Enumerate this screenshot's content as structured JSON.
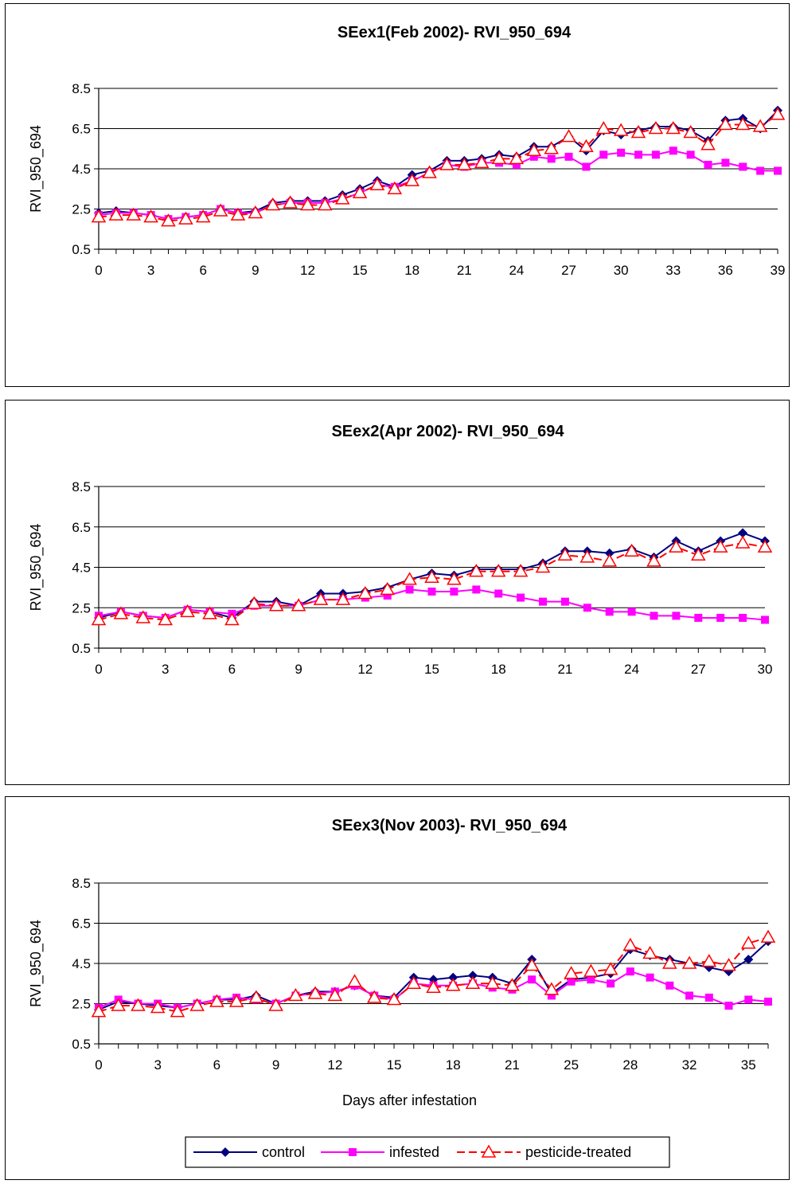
{
  "chart_data": [
    {
      "type": "line",
      "title": "SEex1(Feb 2002)- RVI_950_694",
      "xlabel": "",
      "ylabel": "RVI_950_694",
      "ylim": [
        0.5,
        8.5
      ],
      "yticks": [
        "0.5",
        "2.5",
        "4.5",
        "6.5",
        "8.5"
      ],
      "categories": [
        "0",
        "1",
        "2",
        "3",
        "4",
        "5",
        "6",
        "7",
        "8",
        "9",
        "10",
        "11",
        "12",
        "13",
        "14",
        "15",
        "16",
        "17",
        "18",
        "19",
        "20",
        "21",
        "22",
        "23",
        "24",
        "25",
        "26",
        "27",
        "28",
        "29",
        "30",
        "31",
        "32",
        "33",
        "34",
        "35",
        "36",
        "37",
        "38",
        "39"
      ],
      "xtick_labels": [
        "0",
        "",
        "",
        "3",
        "",
        "",
        "6",
        "",
        "",
        "9",
        "",
        "",
        "12",
        "",
        "",
        "15",
        "",
        "",
        "18",
        "",
        "",
        "21",
        "",
        "",
        "24",
        "",
        "",
        "27",
        "",
        "",
        "30",
        "",
        "",
        "33",
        "",
        "",
        "36",
        "",
        "",
        "39"
      ],
      "grid": "horizontal",
      "series": [
        {
          "name": "control",
          "color": "#000080",
          "marker": "diamond",
          "values": [
            2.3,
            2.4,
            2.3,
            2.2,
            2.0,
            2.1,
            2.2,
            2.5,
            2.3,
            2.4,
            2.8,
            2.9,
            2.9,
            2.9,
            3.2,
            3.5,
            3.9,
            3.6,
            4.2,
            4.4,
            4.9,
            4.9,
            5.0,
            5.2,
            5.1,
            5.6,
            5.6,
            6.1,
            5.4,
            6.4,
            6.2,
            6.4,
            6.6,
            6.6,
            6.4,
            5.9,
            6.9,
            7.0,
            6.5,
            7.4
          ]
        },
        {
          "name": "infested",
          "color": "#FF00FF",
          "marker": "square",
          "values": [
            2.2,
            2.3,
            2.3,
            2.2,
            2.0,
            2.1,
            2.2,
            2.5,
            2.3,
            2.3,
            2.7,
            2.8,
            2.8,
            2.8,
            3.0,
            3.3,
            3.7,
            3.6,
            3.9,
            4.3,
            4.7,
            4.6,
            4.8,
            4.8,
            4.7,
            5.1,
            5.0,
            5.1,
            4.6,
            5.2,
            5.3,
            5.2,
            5.2,
            5.4,
            5.2,
            4.7,
            4.8,
            4.6,
            4.4,
            4.4
          ]
        },
        {
          "name": "pesticide-treated",
          "color": "#FF0000",
          "marker": "triangle",
          "dashed": true,
          "values": [
            2.1,
            2.2,
            2.2,
            2.1,
            1.9,
            2.0,
            2.1,
            2.4,
            2.2,
            2.3,
            2.7,
            2.8,
            2.7,
            2.7,
            3.0,
            3.3,
            3.7,
            3.5,
            3.9,
            4.3,
            4.7,
            4.7,
            4.8,
            5.0,
            5.0,
            5.4,
            5.5,
            6.1,
            5.6,
            6.5,
            6.4,
            6.3,
            6.5,
            6.5,
            6.3,
            5.7,
            6.7,
            6.7,
            6.6,
            7.2
          ]
        }
      ]
    },
    {
      "type": "line",
      "title": "SEex2(Apr 2002)- RVI_950_694",
      "xlabel": "",
      "ylabel": "RVI_950_694",
      "ylim": [
        0.5,
        8.5
      ],
      "yticks": [
        "0.5",
        "2.5",
        "4.5",
        "6.5",
        "8.5"
      ],
      "categories": [
        "0",
        "1",
        "2",
        "3",
        "4",
        "5",
        "6",
        "7",
        "8",
        "9",
        "10",
        "11",
        "12",
        "13",
        "14",
        "15",
        "16",
        "17",
        "18",
        "19",
        "20",
        "21",
        "22",
        "23",
        "24",
        "25",
        "26",
        "27",
        "28",
        "29",
        "30"
      ],
      "xtick_labels": [
        "0",
        "",
        "",
        "3",
        "",
        "",
        "6",
        "",
        "",
        "9",
        "",
        "",
        "12",
        "",
        "",
        "15",
        "",
        "",
        "18",
        "",
        "",
        "21",
        "",
        "",
        "24",
        "",
        "",
        "27",
        "",
        "",
        "30"
      ],
      "grid": "horizontal",
      "series": [
        {
          "name": "control",
          "color": "#000080",
          "marker": "diamond",
          "values": [
            2.0,
            2.3,
            2.1,
            2.0,
            2.4,
            2.3,
            2.0,
            2.8,
            2.8,
            2.6,
            3.2,
            3.2,
            3.3,
            3.5,
            3.9,
            4.2,
            4.1,
            4.4,
            4.4,
            4.4,
            4.7,
            5.3,
            5.3,
            5.2,
            5.4,
            5.0,
            5.8,
            5.3,
            5.8,
            6.2,
            5.8
          ]
        },
        {
          "name": "infested",
          "color": "#FF00FF",
          "marker": "square",
          "values": [
            2.1,
            2.3,
            2.1,
            2.0,
            2.4,
            2.3,
            2.2,
            2.6,
            2.6,
            2.6,
            2.9,
            2.9,
            3.0,
            3.1,
            3.4,
            3.3,
            3.3,
            3.4,
            3.2,
            3.0,
            2.8,
            2.8,
            2.5,
            2.3,
            2.3,
            2.1,
            2.1,
            2.0,
            2.0,
            2.0,
            1.9
          ]
        },
        {
          "name": "pesticide-treated",
          "color": "#FF0000",
          "marker": "triangle",
          "dashed": true,
          "values": [
            1.9,
            2.2,
            2.0,
            1.9,
            2.3,
            2.2,
            1.9,
            2.7,
            2.6,
            2.6,
            2.9,
            2.9,
            3.2,
            3.4,
            3.9,
            4.0,
            3.9,
            4.3,
            4.3,
            4.3,
            4.5,
            5.1,
            5.0,
            4.8,
            5.3,
            4.8,
            5.5,
            5.1,
            5.5,
            5.7,
            5.5
          ]
        }
      ]
    },
    {
      "type": "line",
      "title": "SEex3(Nov 2003)- RVI_950_694",
      "xlabel": "Days after infestation",
      "ylabel": "RVI_950_694",
      "ylim": [
        0.5,
        8.5
      ],
      "yticks": [
        "0.5",
        "2.5",
        "4.5",
        "6.5",
        "8.5"
      ],
      "categories": [
        "0",
        "1",
        "2",
        "3",
        "4",
        "5",
        "6",
        "7",
        "8",
        "9",
        "10",
        "11",
        "12",
        "13",
        "14",
        "15",
        "16",
        "17",
        "18",
        "19",
        "20",
        "21",
        "22",
        "24",
        "25",
        "26",
        "27",
        "28",
        "29",
        "30",
        "32",
        "33",
        "34",
        "35",
        "36"
      ],
      "xtick_labels": [
        "0",
        "",
        "",
        "3",
        "",
        "",
        "6",
        "",
        "",
        "9",
        "",
        "",
        "12",
        "",
        "",
        "15",
        "",
        "",
        "18",
        "",
        "",
        "21",
        "",
        "",
        "25",
        "",
        "",
        "28",
        "",
        "",
        "32",
        "",
        "",
        "35",
        ""
      ],
      "grid": "horizontal",
      "series": [
        {
          "name": "control",
          "color": "#000080",
          "marker": "diamond",
          "values": [
            2.2,
            2.6,
            2.5,
            2.4,
            2.3,
            2.5,
            2.7,
            2.7,
            2.9,
            2.5,
            2.9,
            3.1,
            3.1,
            3.4,
            2.9,
            2.8,
            3.8,
            3.7,
            3.8,
            3.9,
            3.8,
            3.5,
            4.7,
            3.0,
            3.7,
            3.8,
            4.0,
            5.2,
            4.9,
            4.7,
            4.5,
            4.3,
            4.1,
            4.7,
            5.6
          ]
        },
        {
          "name": "infested",
          "color": "#FF00FF",
          "marker": "square",
          "values": [
            2.3,
            2.7,
            2.5,
            2.5,
            2.3,
            2.5,
            2.7,
            2.8,
            2.7,
            2.5,
            2.9,
            3.0,
            3.1,
            3.4,
            2.9,
            2.7,
            3.5,
            3.4,
            3.4,
            3.5,
            3.3,
            3.2,
            3.7,
            2.9,
            3.6,
            3.7,
            3.5,
            4.1,
            3.8,
            3.4,
            2.9,
            2.8,
            2.4,
            2.7,
            2.6
          ]
        },
        {
          "name": "pesticide-treated",
          "color": "#FF0000",
          "marker": "triangle",
          "dashed": true,
          "values": [
            2.1,
            2.4,
            2.4,
            2.3,
            2.1,
            2.4,
            2.6,
            2.6,
            2.8,
            2.4,
            2.9,
            3.0,
            2.9,
            3.6,
            2.8,
            2.7,
            3.5,
            3.3,
            3.4,
            3.5,
            3.5,
            3.4,
            4.4,
            3.2,
            4.0,
            4.1,
            4.2,
            5.4,
            5.0,
            4.5,
            4.5,
            4.6,
            4.4,
            5.5,
            5.8
          ]
        }
      ]
    }
  ],
  "legend": {
    "items": [
      {
        "label": "control",
        "color": "#000080",
        "marker": "diamond"
      },
      {
        "label": "infested",
        "color": "#FF00FF",
        "marker": "square"
      },
      {
        "label": "pesticide-treated",
        "color": "#FF0000",
        "marker": "triangle"
      }
    ]
  }
}
